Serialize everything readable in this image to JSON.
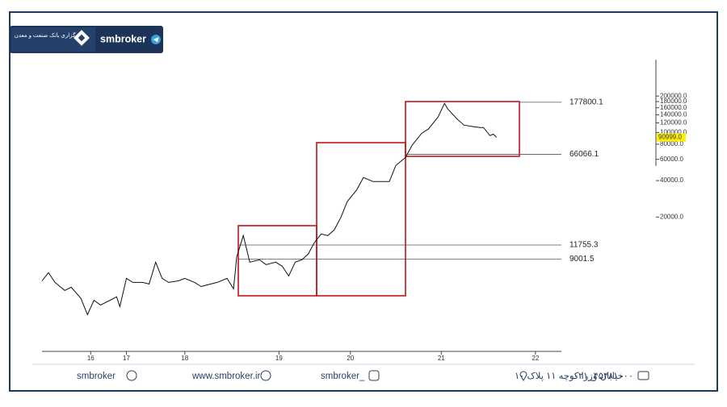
{
  "header": {
    "logo_text": "کارگزاری بانک صنعت و معدن",
    "brand": "smbroker"
  },
  "chart_data": {
    "type": "line",
    "x": [
      0,
      2,
      4,
      7,
      9,
      12,
      14,
      16,
      18,
      21,
      23,
      24,
      26,
      28,
      31,
      33,
      35,
      37,
      39,
      42,
      44,
      47,
      49,
      52,
      54,
      57,
      59,
      60,
      62,
      64,
      67,
      69,
      72,
      74,
      76,
      78,
      80,
      82,
      84,
      86,
      88,
      90,
      92,
      94,
      97,
      99,
      102,
      104,
      107,
      109,
      112,
      114,
      117,
      119,
      122,
      124,
      125,
      128,
      130,
      133,
      135,
      136,
      138,
      139,
      140
    ],
    "series": [
      {
        "name": "price",
        "color": "#111111",
        "values": [
          5940,
          6930,
          5770,
          4950,
          5260,
          4250,
          3120,
          4110,
          3750,
          4110,
          4380,
          3640,
          6230,
          5770,
          5770,
          5590,
          8470,
          6230,
          5770,
          5940,
          6230,
          5770,
          5330,
          5590,
          5770,
          6230,
          5100,
          9430,
          14060,
          8470,
          8860,
          8090,
          8470,
          7840,
          6520,
          8470,
          8860,
          9880,
          12420,
          14490,
          14060,
          15640,
          19690,
          26790,
          33710,
          42450,
          39300,
          39300,
          39300,
          53420,
          62260,
          78400,
          98690,
          106600,
          134200,
          174200,
          156400,
          128200,
          115100,
          111600,
          109900,
          109900,
          94200,
          97000,
          91400
        ]
      }
    ],
    "xlim": [
      0,
      160
    ],
    "xticks": [
      {
        "value": 15,
        "label": "16"
      },
      {
        "value": 26,
        "label": "17"
      },
      {
        "value": 44,
        "label": "18"
      },
      {
        "value": 73,
        "label": "19"
      },
      {
        "value": 95,
        "label": "20"
      },
      {
        "value": 123,
        "label": "21"
      },
      {
        "value": 152,
        "label": "22"
      }
    ],
    "ylim": [
      1600,
      400000
    ],
    "yscale": "log",
    "yticks": [
      {
        "value": 200000,
        "label": "200000.0"
      },
      {
        "value": 180000,
        "label": "180000.0"
      },
      {
        "value": 160000,
        "label": "160000.0"
      },
      {
        "value": 140000,
        "label": "140000.0"
      },
      {
        "value": 120000,
        "label": "120000.0"
      },
      {
        "value": 100000,
        "label": "100000.0"
      },
      {
        "value": 80000,
        "label": "80000.0"
      },
      {
        "value": 60000,
        "label": "60000.0"
      },
      {
        "value": 40000,
        "label": "40000.0"
      },
      {
        "value": 20000,
        "label": "20000.0"
      }
    ],
    "last_price": {
      "value": 90999,
      "label": "90999.0"
    },
    "levels": [
      177800.1,
      66066.1,
      11755.3,
      9001.5
    ],
    "box_color": "#c0151b"
  },
  "footer": {
    "telegram": "smbroker",
    "website": "www.smbroker.ir",
    "instagram": "smbroker_",
    "address": "خیابان وزرا کوچه ۱۱ پلاک ۱۰",
    "phone": "۰۲۱_۴۵۴۸۱۰۰۰"
  }
}
